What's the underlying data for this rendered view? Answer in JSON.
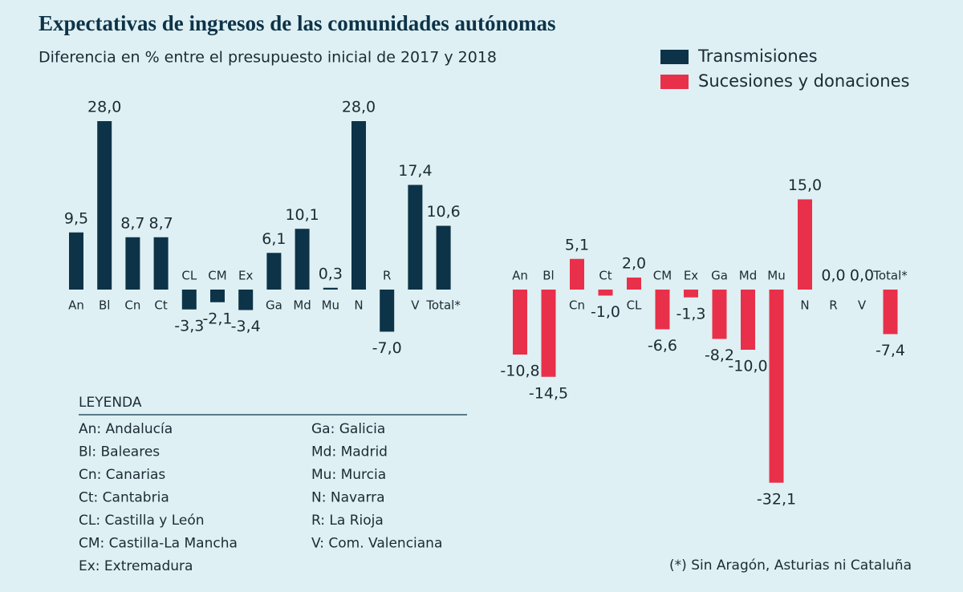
{
  "title": "Expectativas de ingresos de las comunidades autónomas",
  "subtitle": "Diferencia en % entre el presupuesto inicial de 2017 y 2018",
  "chart_data": [
    {
      "type": "bar",
      "categories": [
        "An",
        "Bl",
        "Cn",
        "Ct",
        "CL",
        "CM",
        "Ex",
        "Ga",
        "Md",
        "Mu",
        "N",
        "R",
        "V",
        "Total*"
      ],
      "series": [
        {
          "name": "Transmisiones",
          "color": "#0d3349",
          "values": [
            9.5,
            28.0,
            8.7,
            8.7,
            -3.3,
            -2.1,
            -3.4,
            6.1,
            10.1,
            0.3,
            28.0,
            -7.0,
            17.4,
            10.6
          ],
          "value_labels": [
            "9,5",
            "28,0",
            "8,7",
            "8,7",
            "-3,3",
            "-2,1",
            "-3,4",
            "6,1",
            "10,1",
            "0,3",
            "28,0",
            "-7,0",
            "17,4",
            "10,6"
          ]
        }
      ]
    },
    {
      "type": "bar",
      "categories": [
        "An",
        "Bl",
        "Cn",
        "Ct",
        "CL",
        "CM",
        "Ex",
        "Ga",
        "Md",
        "Mu",
        "N",
        "R",
        "V",
        "Total*"
      ],
      "series": [
        {
          "name": "Sucesiones y donaciones",
          "color": "#e8304a",
          "values": [
            -10.8,
            -14.5,
            5.1,
            -1.0,
            2.0,
            -6.6,
            -1.3,
            -8.2,
            -10.0,
            -32.1,
            15.0,
            0.0,
            0.0,
            -7.4
          ],
          "value_labels": [
            "-10,8",
            "-14,5",
            "5,1",
            "-1,0",
            "2,0",
            "-6,6",
            "-1,3",
            "-8,2",
            "-10,0",
            "-32,1",
            "15,0",
            "0,0",
            "0,0",
            "-7,4"
          ]
        }
      ]
    }
  ],
  "key": {
    "title": "LEYENDA",
    "left": [
      "An: Andalucía",
      "Bl: Baleares",
      "Cn: Canarias",
      "Ct: Cantabria",
      "CL: Castilla y León",
      "CM: Castilla-La Mancha",
      "Ex: Extremadura"
    ],
    "right": [
      "Ga: Galicia",
      "Md: Madrid",
      "Mu: Murcia",
      "N: Navarra",
      "R: La Rioja",
      "V: Com. Valenciana"
    ]
  },
  "footnote": "(*) Sin Aragón, Asturias ni Cataluña"
}
